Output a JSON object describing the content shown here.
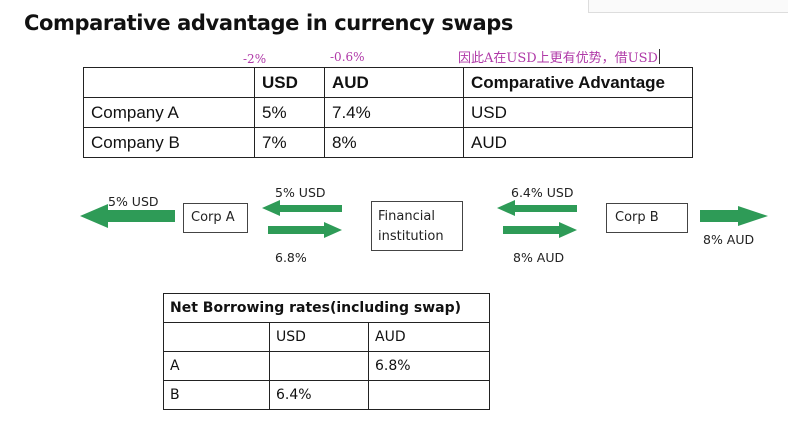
{
  "title": "Comparative advantage in  currency swaps",
  "annotations": {
    "usd_diff": "-2%",
    "aud_diff": "-0.6%",
    "note": "因此A在USD上更有优势，借USD"
  },
  "table1": {
    "headers": [
      "",
      "USD",
      "AUD",
      "Comparative Advantage"
    ],
    "rows": [
      [
        "Company A",
        "5%",
        "7.4%",
        "USD"
      ],
      [
        "Company B",
        "7%",
        "8%",
        "AUD"
      ]
    ]
  },
  "diagram": {
    "corp_a": "Corp A",
    "fi_line1": "Financial",
    "fi_line2": "institution",
    "corp_b": "Corp B",
    "label_a_out": "5% USD",
    "label_a_in_top": "5% USD",
    "label_a_out_bottom": "6.8%",
    "label_b_in_top": "6.4% USD",
    "label_b_out_bottom": "8% AUD",
    "label_b_out": "8% AUD",
    "arrow_color": "#2e9b57"
  },
  "table2": {
    "title": "Net Borrowing rates(including swap)",
    "headers": [
      "",
      "USD",
      "AUD"
    ],
    "rows": [
      [
        "A",
        "",
        "6.8%"
      ],
      [
        "B",
        "6.4%",
        ""
      ]
    ]
  }
}
